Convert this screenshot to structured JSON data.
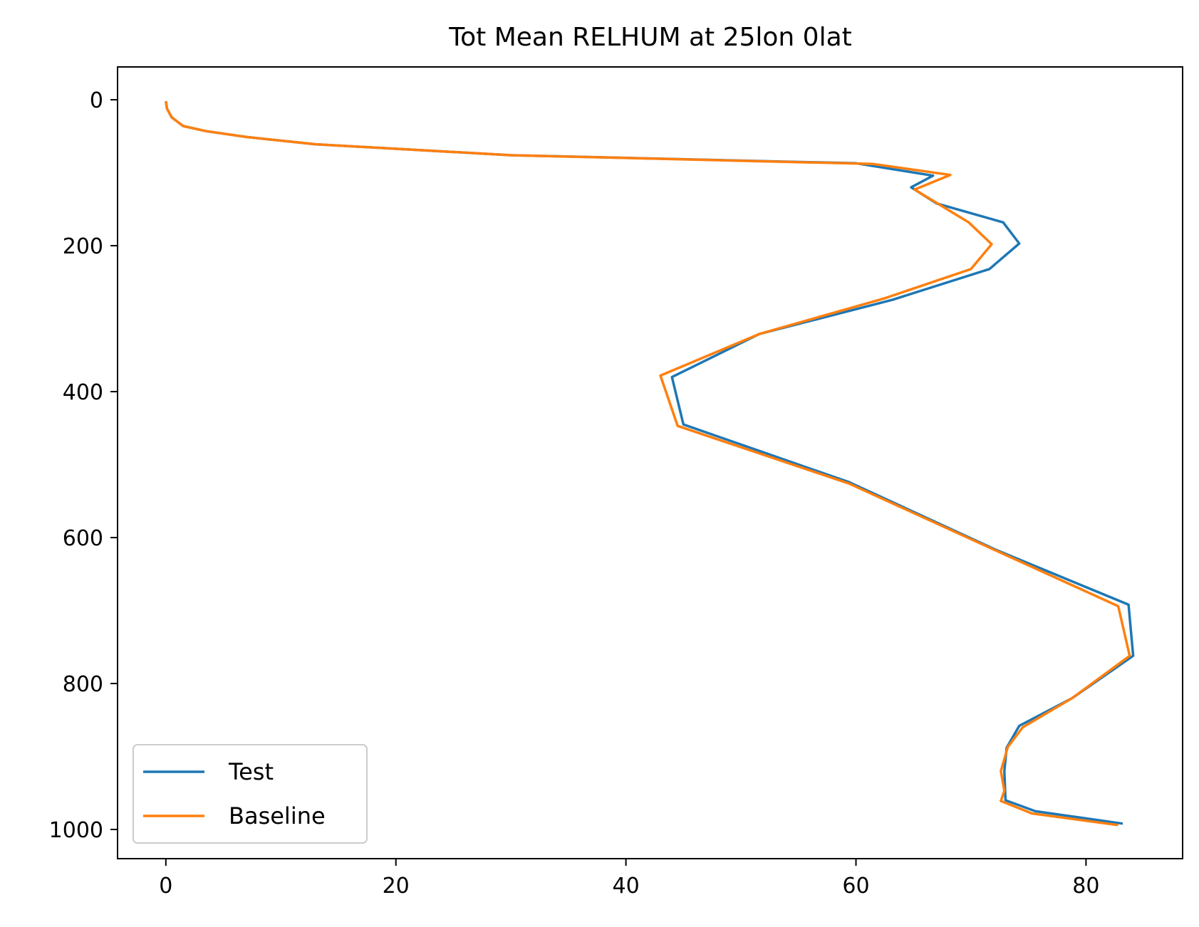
{
  "chart_data": {
    "type": "line",
    "title": "Tot Mean RELHUM at 25lon 0lat",
    "xlabel": "",
    "ylabel": "",
    "xlim": [
      -4.2,
      88.4
    ],
    "ylim": [
      1040,
      -45
    ],
    "y_inverted": true,
    "x_ticks": [
      0,
      20,
      40,
      60,
      80
    ],
    "y_ticks": [
      0,
      200,
      400,
      600,
      800,
      1000
    ],
    "x_tick_labels": [
      "0",
      "20",
      "40",
      "60",
      "80"
    ],
    "y_tick_labels": [
      "0",
      "200",
      "400",
      "600",
      "800",
      "1000"
    ],
    "grid": false,
    "legend_position": "lower left",
    "series": [
      {
        "name": "Test",
        "color": "#1f77b4",
        "points": [
          [
            0.0,
            2
          ],
          [
            0.1,
            12
          ],
          [
            0.5,
            24
          ],
          [
            1.5,
            36
          ],
          [
            3.5,
            43
          ],
          [
            7,
            51
          ],
          [
            13,
            61
          ],
          [
            30,
            76
          ],
          [
            60,
            87
          ],
          [
            66.7,
            104
          ],
          [
            64.8,
            120
          ],
          [
            67,
            142
          ],
          [
            72.8,
            168
          ],
          [
            74.2,
            197
          ],
          [
            71.6,
            232
          ],
          [
            63.2,
            274
          ],
          [
            51.6,
            321
          ],
          [
            44,
            380
          ],
          [
            45,
            445
          ],
          [
            59.4,
            524
          ],
          [
            72.2,
            617
          ],
          [
            83.7,
            692
          ],
          [
            84.1,
            762
          ],
          [
            78.8,
            820
          ],
          [
            74.2,
            858
          ],
          [
            73.1,
            888
          ],
          [
            72.9,
            920
          ],
          [
            73,
            960
          ],
          [
            75.6,
            975
          ],
          [
            83.2,
            992
          ]
        ]
      },
      {
        "name": "Baseline",
        "color": "#ff7f0e",
        "points": [
          [
            0.0,
            2
          ],
          [
            0.1,
            12
          ],
          [
            0.5,
            24
          ],
          [
            1.5,
            36
          ],
          [
            3.5,
            43
          ],
          [
            7,
            51
          ],
          [
            13,
            61
          ],
          [
            30,
            76
          ],
          [
            61.5,
            88
          ],
          [
            68.2,
            103
          ],
          [
            65.1,
            123
          ],
          [
            69.8,
            168
          ],
          [
            71.8,
            198
          ],
          [
            70,
            232
          ],
          [
            62.5,
            272
          ],
          [
            51.6,
            321
          ],
          [
            43,
            378
          ],
          [
            44.5,
            447
          ],
          [
            59.4,
            526
          ],
          [
            72.2,
            618
          ],
          [
            82.8,
            694
          ],
          [
            83.8,
            762
          ],
          [
            78.8,
            820
          ],
          [
            74.5,
            860
          ],
          [
            73.2,
            887
          ],
          [
            72.6,
            920
          ],
          [
            72.9,
            947
          ],
          [
            72.6,
            961
          ],
          [
            75.3,
            978
          ],
          [
            82.8,
            994
          ]
        ]
      }
    ]
  }
}
